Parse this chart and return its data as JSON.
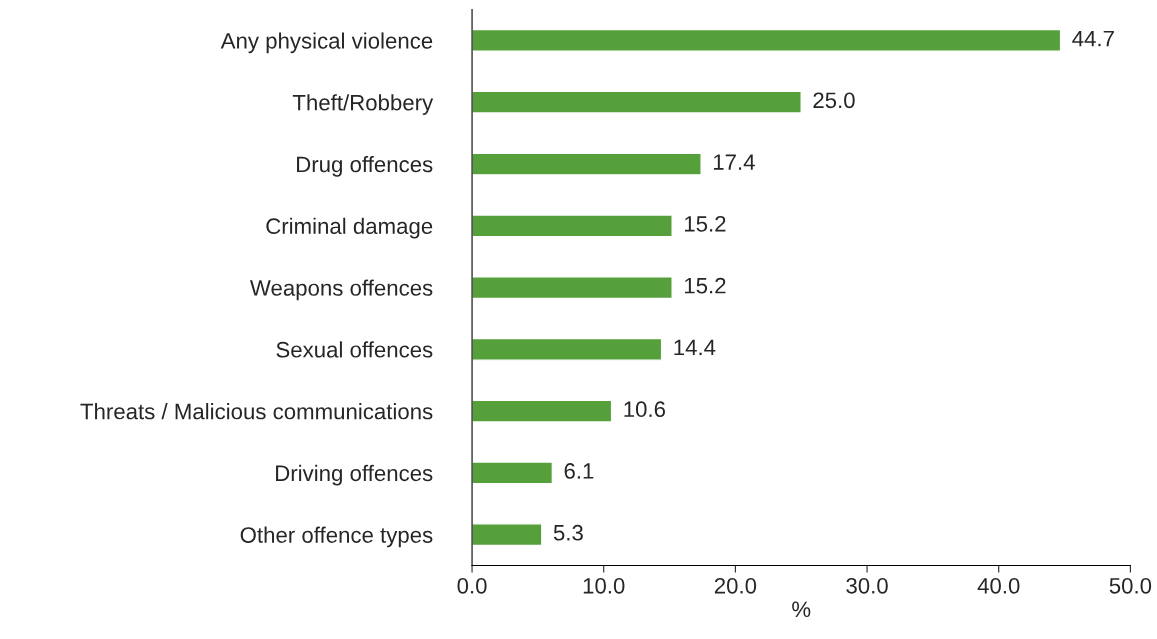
{
  "chart_data": {
    "type": "bar",
    "orientation": "horizontal",
    "xlabel": "%",
    "categories": [
      "Any physical violence",
      "Theft/Robbery",
      "Drug offences",
      "Criminal damage",
      "Weapons offences",
      "Sexual offences",
      "Threats / Malicious communications",
      "Driving offences",
      "Other offence types"
    ],
    "values": [
      44.7,
      25.0,
      17.4,
      15.2,
      15.2,
      14.4,
      10.6,
      6.1,
      5.3
    ],
    "color": "#56a03c",
    "xlim": [
      0,
      50
    ],
    "xticks": [
      {
        "value": 0,
        "label": "0.0"
      },
      {
        "value": 10,
        "label": "10.0"
      },
      {
        "value": 20,
        "label": "20.0"
      },
      {
        "value": 30,
        "label": "30.0"
      },
      {
        "value": 40,
        "label": "40.0"
      },
      {
        "value": 50,
        "label": "50.0"
      }
    ],
    "value_labels": [
      "44.7",
      "25.0",
      "17.4",
      "15.2",
      "15.2",
      "14.4",
      "10.6",
      "6.1",
      "5.3"
    ],
    "grid": false,
    "legend": false
  }
}
